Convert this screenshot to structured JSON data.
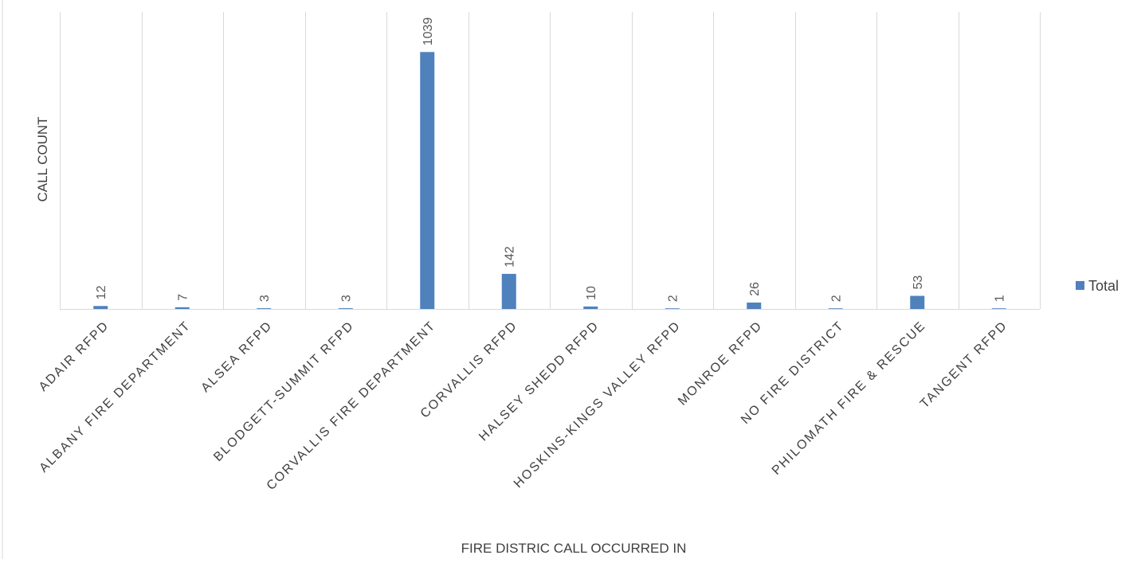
{
  "chart_data": {
    "type": "bar",
    "title": "",
    "xlabel": "FIRE DISTRIC CALL OCCURRED IN",
    "ylabel": "CALL COUNT",
    "categories": [
      "ADAIR RFPD",
      "ALBANY FIRE DEPARTMENT",
      "ALSEA RFPD",
      "BLODGETT-SUMMIT RFPD",
      "CORVALLIS FIRE DEPARTMENT",
      "CORVALLIS RFPD",
      "HALSEY SHEDD RFPD",
      "HOSKINS-KINGS VALLEY RFPD",
      "MONROE RFPD",
      "NO FIRE DISTRICT",
      "PHILOMATH FIRE & RESCUE",
      "TANGENT RFPD"
    ],
    "series": [
      {
        "name": "Total",
        "values": [
          12,
          7,
          3,
          3,
          1039,
          142,
          10,
          2,
          26,
          2,
          53,
          1
        ]
      }
    ],
    "ylim": [
      0,
      1040
    ],
    "grid": "vertical",
    "legend": "right",
    "data_labels": true,
    "colors": {
      "bar": "#4f81bd",
      "grid": "#d9d9d9",
      "label": "#595959",
      "axis_text": "#404040"
    }
  }
}
